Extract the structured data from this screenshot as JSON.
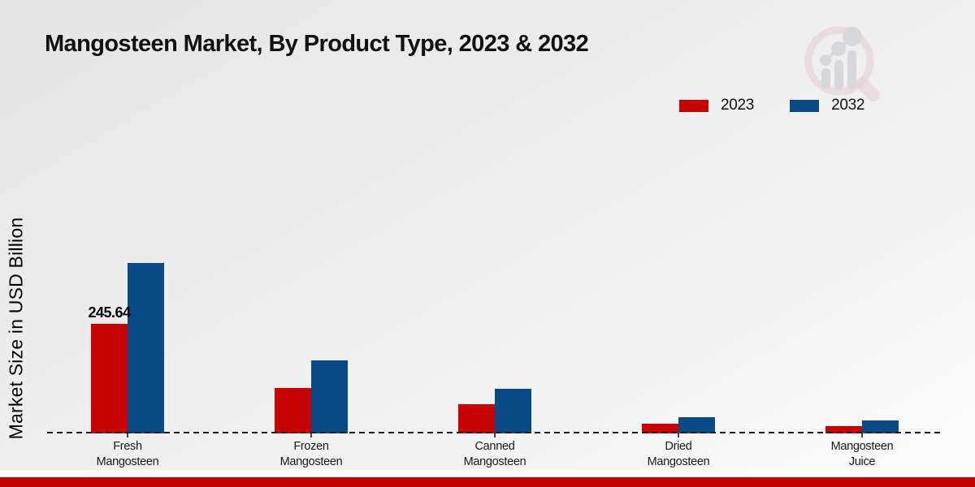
{
  "chart_data": {
    "type": "bar",
    "title": "Mangosteen Market, By Product Type, 2023 & 2032",
    "ylabel": "Market Size in USD Billion",
    "xlabel": "",
    "categories": [
      "Fresh\nMangosteen",
      "Frozen\nMangosteen",
      "Canned\nMangosteen",
      "Dried\nMangosteen",
      "Mangosteen\nJuice"
    ],
    "series": [
      {
        "name": "2023",
        "color": "#c60202",
        "values": [
          245.64,
          102,
          65,
          22,
          16
        ]
      },
      {
        "name": "2032",
        "color": "#0a4a87",
        "values": [
          382,
          164,
          100,
          36,
          30
        ]
      }
    ],
    "value_labels": [
      {
        "series": "2023",
        "category_index": 0,
        "text": "245.64"
      }
    ],
    "ylim": [
      0,
      420
    ],
    "units": "USD Billion",
    "baseline_style": "dashed",
    "grid": "off",
    "legend_position": "top-right"
  },
  "watermark": {
    "icon": "magnifier-bar-chart-logo-icon"
  },
  "footer": {
    "accent_bar_color": "#c00000"
  }
}
